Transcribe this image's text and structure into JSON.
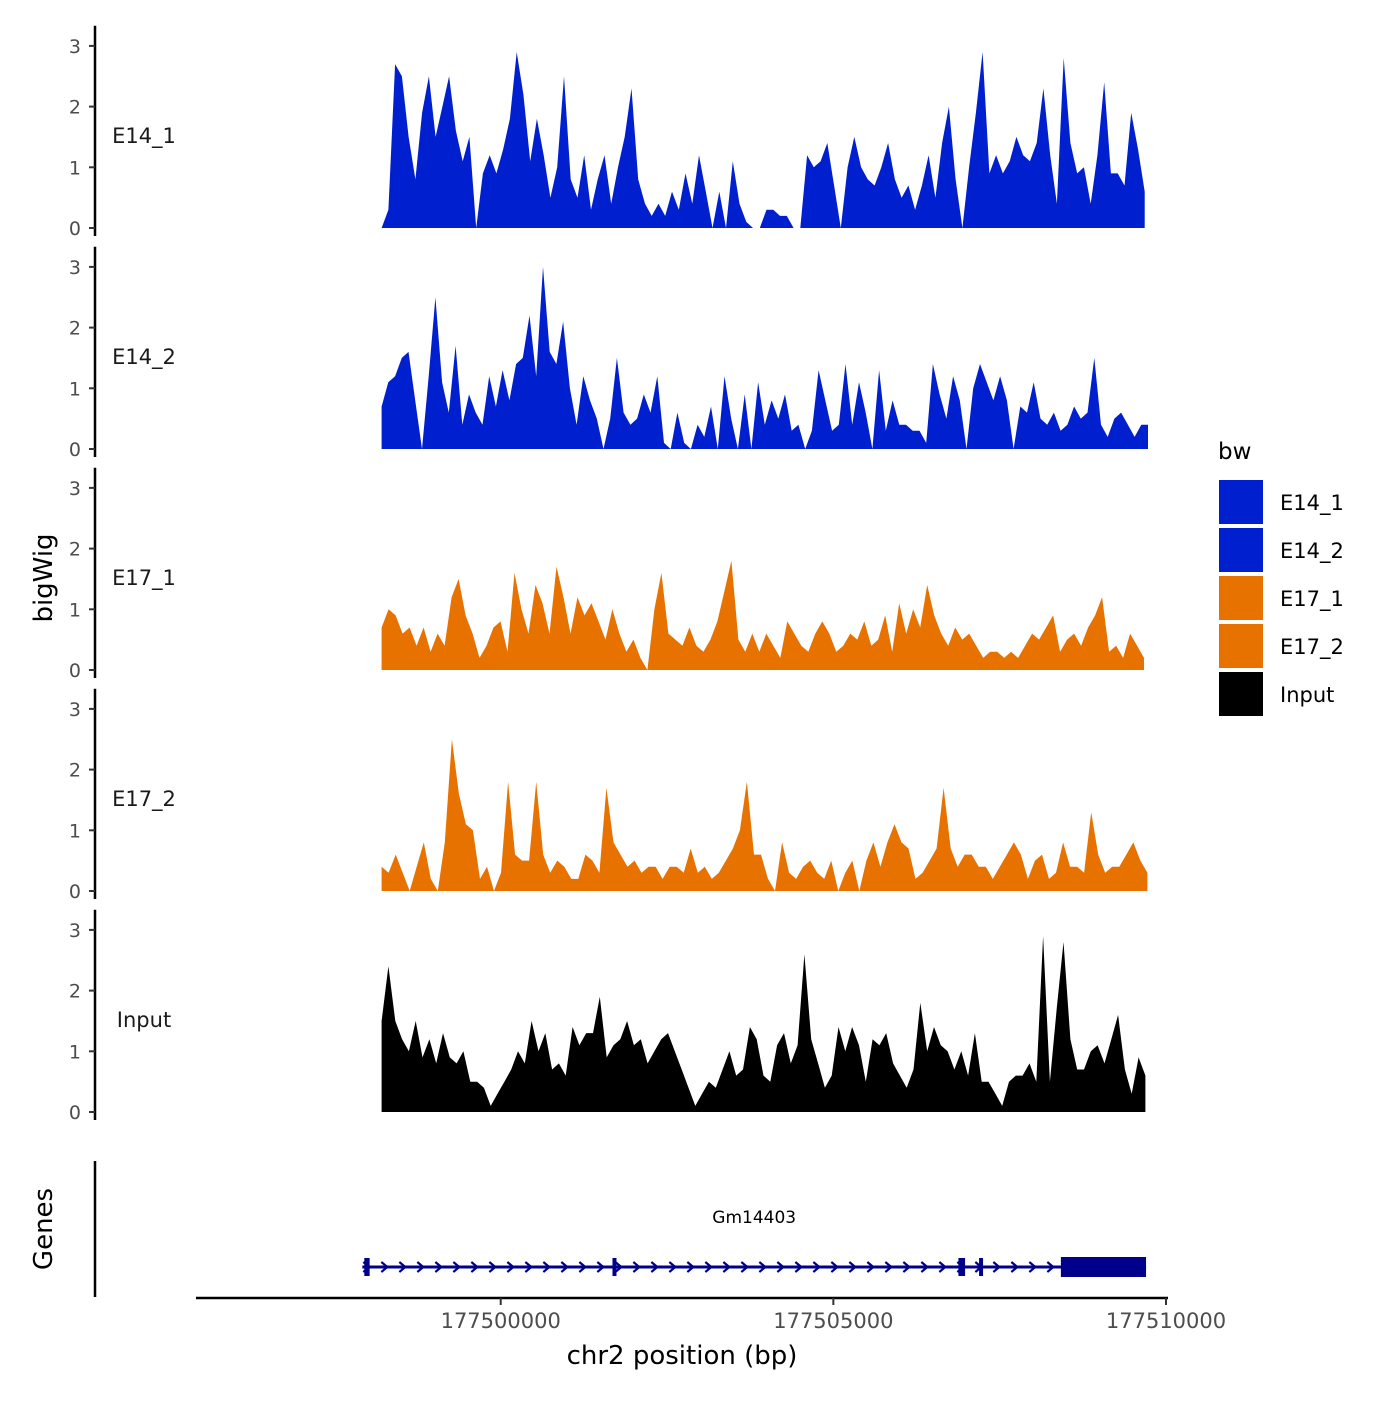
{
  "chart_data": {
    "type": "area",
    "ylabel": "bigWig",
    "genes_label": "Genes",
    "xlabel": "chr2 position (bp)",
    "xlim": [
      177495420,
      177510030
    ],
    "x_ticks": [
      177500000,
      177505000,
      177510000
    ],
    "x_tick_labels": [
      "177500000",
      "177505000",
      "177510000"
    ],
    "ylim": [
      0,
      3.3
    ],
    "y_ticks": [
      0,
      1,
      2,
      3
    ],
    "y_tick_labels": [
      "0",
      "1",
      "2",
      "3"
    ],
    "legend": {
      "title": "bw",
      "position": "right",
      "entries": [
        {
          "label": "E14_1",
          "color": "#0020D0"
        },
        {
          "label": "E14_2",
          "color": "#0020D0"
        },
        {
          "label": "E17_1",
          "color": "#E87200"
        },
        {
          "label": "E17_2",
          "color": "#E87200"
        },
        {
          "label": "Input",
          "color": "#000000"
        }
      ]
    },
    "series": [
      {
        "name": "E14_1",
        "color": "#0020D0",
        "x_start": 177498210,
        "x_end": 177509680,
        "profile": [
          0,
          0.3,
          2.7,
          2.5,
          1.5,
          0.8,
          1.9,
          2.5,
          1.5,
          2.0,
          2.5,
          1.6,
          1.1,
          1.5,
          0,
          0.9,
          1.2,
          0.9,
          1.3,
          1.8,
          2.9,
          2.2,
          1.1,
          1.8,
          1.2,
          0.5,
          1.0,
          2.5,
          0.8,
          0.5,
          1.2,
          0.3,
          0.8,
          1.2,
          0.4,
          1.0,
          1.5,
          2.3,
          0.8,
          0.4,
          0.2,
          0.4,
          0.2,
          0.6,
          0.3,
          0.9,
          0.4,
          1.2,
          0.6,
          0,
          0.6,
          0,
          1.1,
          0.4,
          0.1,
          0,
          0,
          0.3,
          0.3,
          0.2,
          0.2,
          0,
          0,
          1.2,
          1.0,
          1.1,
          1.4,
          0.7,
          0,
          1.0,
          1.5,
          1.0,
          0.8,
          0.7,
          1.0,
          1.4,
          0.8,
          0.5,
          0.7,
          0.3,
          0.7,
          1.2,
          0.5,
          1.4,
          2.0,
          0.8,
          0,
          1.0,
          1.9,
          2.9,
          0.9,
          1.2,
          0.9,
          1.1,
          1.5,
          1.2,
          1.1,
          1.4,
          2.3,
          1.2,
          0.4,
          2.8,
          1.4,
          0.9,
          1.0,
          0.4,
          1.2,
          2.4,
          0.9,
          0.9,
          0.7,
          1.9,
          1.3,
          0.6
        ]
      },
      {
        "name": "E14_2",
        "color": "#0020D0",
        "x_start": 177498210,
        "x_end": 177509730,
        "profile": [
          0.7,
          1.1,
          1.2,
          1.5,
          1.6,
          0.8,
          0.0,
          1.2,
          2.5,
          1.1,
          0.6,
          1.7,
          0.4,
          0.9,
          0.6,
          0.4,
          1.2,
          0.7,
          1.3,
          0.8,
          1.4,
          1.5,
          2.2,
          1.2,
          3.0,
          1.6,
          1.4,
          2.1,
          1.0,
          0.4,
          1.2,
          0.8,
          0.5,
          0,
          0.5,
          1.5,
          0.6,
          0.4,
          0.5,
          0.9,
          0.6,
          1.2,
          0.1,
          0,
          0.6,
          0.1,
          0,
          0.4,
          0.2,
          0.7,
          0,
          1.2,
          0.5,
          0,
          0.9,
          0,
          1.1,
          0.4,
          0.8,
          0.5,
          0.9,
          0.3,
          0.4,
          0,
          0.3,
          1.3,
          0.8,
          0.3,
          0.4,
          1.4,
          0.4,
          1.1,
          0.6,
          0,
          1.3,
          0.3,
          0.8,
          0.4,
          0.4,
          0.3,
          0.3,
          0.1,
          1.4,
          0.9,
          0.5,
          1.2,
          0.8,
          0,
          1.0,
          1.4,
          1.1,
          0.8,
          1.2,
          0.8,
          0,
          0.7,
          0.6,
          1.1,
          0.5,
          0.4,
          0.6,
          0.3,
          0.4,
          0.7,
          0.5,
          0.6,
          1.5,
          0.4,
          0.2,
          0.5,
          0.6,
          0.4,
          0.2,
          0.4,
          0.4
        ]
      },
      {
        "name": "E17_1",
        "color": "#E87200",
        "x_start": 177498210,
        "x_end": 177509670,
        "profile": [
          0.7,
          1.0,
          0.9,
          0.6,
          0.7,
          0.4,
          0.7,
          0.3,
          0.6,
          0.4,
          1.2,
          1.5,
          0.9,
          0.6,
          0.2,
          0.4,
          0.7,
          0.8,
          0.3,
          1.6,
          1.0,
          0.6,
          1.4,
          1.1,
          0.6,
          1.7,
          1.2,
          0.6,
          1.2,
          0.9,
          1.1,
          0.8,
          0.5,
          1.0,
          0.6,
          0.3,
          0.5,
          0.2,
          0,
          1.0,
          1.6,
          0.6,
          0.5,
          0.4,
          0.7,
          0.4,
          0.3,
          0.5,
          0.8,
          1.3,
          1.8,
          0.5,
          0.3,
          0.6,
          0.3,
          0.6,
          0.4,
          0.2,
          0.8,
          0.6,
          0.4,
          0.3,
          0.6,
          0.8,
          0.6,
          0.3,
          0.4,
          0.6,
          0.5,
          0.8,
          0.4,
          0.5,
          0.9,
          0.3,
          1.1,
          0.6,
          1.0,
          0.7,
          1.4,
          0.9,
          0.6,
          0.4,
          0.7,
          0.5,
          0.6,
          0.4,
          0.2,
          0.3,
          0.3,
          0.2,
          0.3,
          0.2,
          0.4,
          0.6,
          0.5,
          0.7,
          0.9,
          0.3,
          0.5,
          0.6,
          0.4,
          0.7,
          0.9,
          1.2,
          0.3,
          0.4,
          0.2,
          0.6,
          0.4,
          0.2
        ]
      },
      {
        "name": "E17_2",
        "color": "#E87200",
        "x_start": 177498210,
        "x_end": 177509720,
        "profile": [
          0.4,
          0.3,
          0.6,
          0.3,
          0,
          0.4,
          0.8,
          0.2,
          0,
          0.8,
          2.5,
          1.6,
          1.1,
          1.0,
          0.2,
          0.4,
          0,
          0.3,
          1.8,
          0.6,
          0.5,
          0.5,
          1.8,
          0.6,
          0.3,
          0.5,
          0.4,
          0.2,
          0.2,
          0.6,
          0.5,
          0.3,
          1.7,
          0.8,
          0.6,
          0.4,
          0.5,
          0.3,
          0.4,
          0.4,
          0.2,
          0.4,
          0.4,
          0.3,
          0.7,
          0.3,
          0.4,
          0.2,
          0.3,
          0.5,
          0.7,
          1.0,
          1.8,
          0.6,
          0.6,
          0.2,
          0,
          0.8,
          0.3,
          0.2,
          0.4,
          0.5,
          0.3,
          0.2,
          0.5,
          0,
          0.3,
          0.5,
          0,
          0.5,
          0.8,
          0.4,
          0.8,
          1.1,
          0.8,
          0.7,
          0.2,
          0.3,
          0.5,
          0.7,
          1.7,
          0.7,
          0.4,
          0.6,
          0.6,
          0.4,
          0.4,
          0.2,
          0.4,
          0.6,
          0.8,
          0.6,
          0.2,
          0.5,
          0.6,
          0.2,
          0.3,
          0.8,
          0.4,
          0.4,
          0.3,
          1.3,
          0.6,
          0.3,
          0.4,
          0.4,
          0.6,
          0.8,
          0.5,
          0.3
        ]
      },
      {
        "name": "Input",
        "color": "#000000",
        "x_start": 177498210,
        "x_end": 177509690,
        "profile": [
          1.5,
          2.4,
          1.5,
          1.2,
          1.0,
          1.5,
          0.9,
          1.2,
          0.8,
          1.3,
          0.9,
          0.8,
          1.0,
          0.5,
          0.5,
          0.4,
          0.1,
          0.3,
          0.5,
          0.7,
          1.0,
          0.8,
          1.5,
          1.0,
          1.3,
          0.7,
          0.8,
          0.6,
          1.4,
          1.1,
          1.3,
          1.3,
          1.9,
          0.9,
          1.1,
          1.2,
          1.5,
          1.1,
          1.2,
          0.8,
          1.0,
          1.2,
          1.3,
          1.0,
          0.7,
          0.4,
          0.1,
          0.3,
          0.5,
          0.4,
          0.7,
          1.0,
          0.6,
          0.7,
          1.4,
          1.2,
          0.6,
          0.5,
          1.1,
          1.3,
          0.8,
          1.1,
          2.6,
          1.2,
          0.8,
          0.4,
          0.6,
          1.4,
          1.0,
          1.4,
          1.1,
          0.5,
          1.2,
          1.1,
          1.3,
          0.8,
          0.6,
          0.4,
          0.7,
          1.8,
          1.0,
          1.4,
          1.1,
          1.0,
          0.7,
          1.0,
          0.6,
          1.3,
          0.5,
          0.5,
          0.3,
          0.1,
          0.5,
          0.6,
          0.6,
          0.8,
          0.5,
          2.9,
          0.5,
          1.7,
          2.8,
          1.2,
          0.7,
          0.7,
          1.0,
          1.1,
          0.8,
          1.2,
          1.6,
          0.7,
          0.3,
          0.9,
          0.6
        ]
      }
    ],
    "gene": {
      "name": "Gm14403",
      "strand": "+",
      "color": "#00008B",
      "tx_start": 177497920,
      "tx_end": 177509700,
      "exons": [
        {
          "start": 177497950,
          "end": 177498030
        },
        {
          "start": 177501680,
          "end": 177501740
        },
        {
          "start": 177506880,
          "end": 177506980
        },
        {
          "start": 177507190,
          "end": 177507230
        }
      ],
      "thick_exon": {
        "start": 177508420,
        "end": 177509700
      }
    }
  }
}
